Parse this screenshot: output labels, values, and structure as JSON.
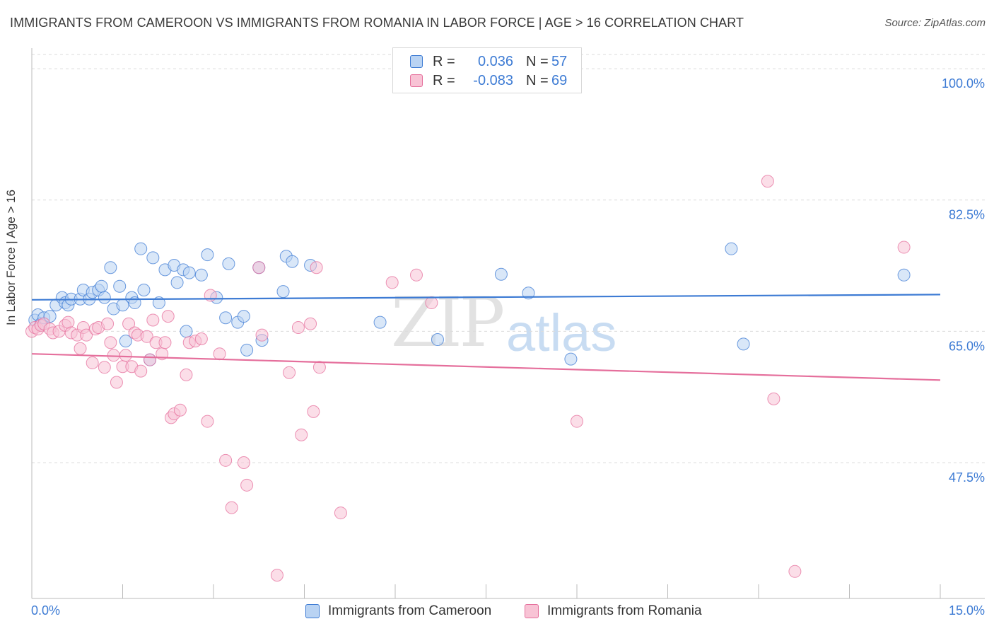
{
  "title": "IMMIGRANTS FROM CAMEROON VS IMMIGRANTS FROM ROMANIA IN LABOR FORCE | AGE > 16 CORRELATION CHART",
  "source": "Source: ZipAtlas.com",
  "watermark": {
    "zip": "ZIP",
    "atlas": "atlas"
  },
  "legend": {
    "rows": [
      {
        "r_label": "R =",
        "r_value": "0.036",
        "n_label": "N =",
        "n_value": "57"
      },
      {
        "r_label": "R =",
        "r_value": "-0.083",
        "n_label": "N =",
        "n_value": "69"
      }
    ]
  },
  "colors": {
    "cameroon": "#3d7bd4",
    "romania": "#e56f9c",
    "cameroon_fill": "#b9d3f3",
    "romania_fill": "#f8c3d5"
  },
  "chart_data": {
    "type": "scatter",
    "title": "IMMIGRANTS FROM CAMEROON VS IMMIGRANTS FROM ROMANIA IN LABOR FORCE | AGE > 16 CORRELATION CHART",
    "xlabel": "",
    "ylabel": "In Labor Force | Age > 16",
    "x_tick_labels": [
      "0.0%",
      "15.0%"
    ],
    "y_tick_labels": [
      "100.0%",
      "82.5%",
      "65.0%",
      "47.5%"
    ],
    "y_ticks": [
      100.0,
      82.5,
      65.0,
      47.5
    ],
    "xlim": [
      0,
      15
    ],
    "ylim": [
      33.5,
      102
    ],
    "grid": true,
    "legend_position": "top-center",
    "series": [
      {
        "name": "Immigrants from Cameroon",
        "color": "#3d7bd4",
        "trend": [
          [
            0,
            69.2
          ],
          [
            15,
            69.9
          ]
        ],
        "points": [
          [
            0.05,
            66.5
          ],
          [
            0.1,
            67.2
          ],
          [
            0.15,
            66.0
          ],
          [
            0.2,
            66.8
          ],
          [
            0.3,
            67.0
          ],
          [
            0.4,
            68.5
          ],
          [
            0.5,
            69.5
          ],
          [
            0.55,
            68.8
          ],
          [
            0.6,
            68.5
          ],
          [
            0.65,
            69.3
          ],
          [
            0.8,
            69.3
          ],
          [
            0.85,
            70.5
          ],
          [
            0.95,
            69.3
          ],
          [
            1.0,
            70.2
          ],
          [
            1.1,
            70.5
          ],
          [
            1.15,
            71.0
          ],
          [
            1.2,
            69.5
          ],
          [
            1.3,
            73.5
          ],
          [
            1.35,
            68.0
          ],
          [
            1.45,
            71.0
          ],
          [
            1.5,
            68.5
          ],
          [
            1.55,
            63.7
          ],
          [
            1.65,
            69.5
          ],
          [
            1.7,
            68.8
          ],
          [
            1.8,
            76.0
          ],
          [
            1.85,
            70.5
          ],
          [
            1.95,
            61.2
          ],
          [
            2.0,
            74.8
          ],
          [
            2.1,
            68.8
          ],
          [
            2.2,
            73.2
          ],
          [
            2.35,
            73.8
          ],
          [
            2.4,
            71.5
          ],
          [
            2.5,
            73.2
          ],
          [
            2.55,
            65.0
          ],
          [
            2.6,
            72.8
          ],
          [
            2.8,
            72.5
          ],
          [
            2.9,
            75.2
          ],
          [
            3.05,
            69.5
          ],
          [
            3.2,
            66.8
          ],
          [
            3.25,
            74.0
          ],
          [
            3.4,
            66.2
          ],
          [
            3.5,
            67.0
          ],
          [
            3.55,
            62.5
          ],
          [
            3.75,
            73.5
          ],
          [
            3.8,
            63.8
          ],
          [
            4.15,
            70.3
          ],
          [
            4.2,
            75.0
          ],
          [
            4.3,
            74.3
          ],
          [
            4.6,
            73.8
          ],
          [
            5.75,
            66.2
          ],
          [
            6.7,
            63.9
          ],
          [
            7.75,
            72.6
          ],
          [
            8.2,
            70.1
          ],
          [
            8.9,
            61.3
          ],
          [
            11.55,
            76.0
          ],
          [
            11.75,
            63.3
          ],
          [
            14.4,
            72.5
          ]
        ]
      },
      {
        "name": "Immigrants from Romania",
        "color": "#e56f9c",
        "trend": [
          [
            0,
            62.0
          ],
          [
            15,
            58.5
          ]
        ],
        "points": [
          [
            0.0,
            65.0
          ],
          [
            0.05,
            65.5
          ],
          [
            0.1,
            65.3
          ],
          [
            0.15,
            65.8
          ],
          [
            0.2,
            66.0
          ],
          [
            0.3,
            65.3
          ],
          [
            0.35,
            64.8
          ],
          [
            0.45,
            65.0
          ],
          [
            0.55,
            65.8
          ],
          [
            0.6,
            66.2
          ],
          [
            0.65,
            64.8
          ],
          [
            0.75,
            64.5
          ],
          [
            0.8,
            62.7
          ],
          [
            0.85,
            65.5
          ],
          [
            0.9,
            64.5
          ],
          [
            1.0,
            60.8
          ],
          [
            1.05,
            65.3
          ],
          [
            1.1,
            65.5
          ],
          [
            1.2,
            60.2
          ],
          [
            1.25,
            66.0
          ],
          [
            1.3,
            63.5
          ],
          [
            1.35,
            61.8
          ],
          [
            1.4,
            58.2
          ],
          [
            1.5,
            60.3
          ],
          [
            1.55,
            61.8
          ],
          [
            1.6,
            66.0
          ],
          [
            1.65,
            60.3
          ],
          [
            1.7,
            64.8
          ],
          [
            1.75,
            64.5
          ],
          [
            1.8,
            59.7
          ],
          [
            1.9,
            64.3
          ],
          [
            1.95,
            61.2
          ],
          [
            2.0,
            66.5
          ],
          [
            2.05,
            63.5
          ],
          [
            2.15,
            62.0
          ],
          [
            2.2,
            63.5
          ],
          [
            2.25,
            67.0
          ],
          [
            2.3,
            53.5
          ],
          [
            2.35,
            54.0
          ],
          [
            2.45,
            54.5
          ],
          [
            2.55,
            59.2
          ],
          [
            2.6,
            63.5
          ],
          [
            2.7,
            63.7
          ],
          [
            2.8,
            64.0
          ],
          [
            2.9,
            53.0
          ],
          [
            2.95,
            69.8
          ],
          [
            3.1,
            62.0
          ],
          [
            3.2,
            47.8
          ],
          [
            3.3,
            41.5
          ],
          [
            3.5,
            47.5
          ],
          [
            3.55,
            44.5
          ],
          [
            3.75,
            73.5
          ],
          [
            3.8,
            64.5
          ],
          [
            4.05,
            32.5
          ],
          [
            4.25,
            59.5
          ],
          [
            4.4,
            65.5
          ],
          [
            4.45,
            51.2
          ],
          [
            4.6,
            66.0
          ],
          [
            4.65,
            54.3
          ],
          [
            4.7,
            73.5
          ],
          [
            4.75,
            60.2
          ],
          [
            5.1,
            40.8
          ],
          [
            5.95,
            71.5
          ],
          [
            6.35,
            72.5
          ],
          [
            6.6,
            68.8
          ],
          [
            9.0,
            53.0
          ],
          [
            12.15,
            85.0
          ],
          [
            12.25,
            56.0
          ],
          [
            12.6,
            33.0
          ],
          [
            14.4,
            76.2
          ]
        ]
      }
    ]
  },
  "bottom_legend": {
    "cameroon": "Immigrants from Cameroon",
    "romania": "Immigrants from Romania"
  }
}
